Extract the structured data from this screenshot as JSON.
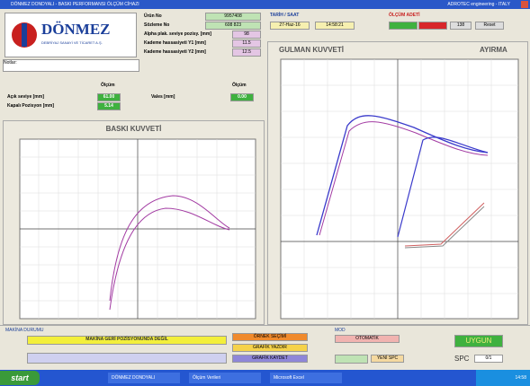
{
  "window": {
    "title": "DÖNMEZ DONDYALI - BASKI PERFORMANSI ÖLÇÜM CİHAZI",
    "vendor": "ADROTEC engineering - ITALY"
  },
  "logo": {
    "name": "DÖNMEZ",
    "subtitle": "DEBRİYAJ SANAYİ VE TİCARET A.Ş."
  },
  "fields": [
    {
      "label": "Ürün No",
      "value": "9957408"
    },
    {
      "label": "Sözleme No",
      "value": "608 823"
    },
    {
      "label": "Alpha plak. seviye pozisy. [mm]",
      "value": "98"
    },
    {
      "label": "Kademe hassasiyeti Y1 [mm]",
      "value": "11.5"
    },
    {
      "label": "Kademe hassasiyeti Y2 [mm]",
      "value": "12.5"
    }
  ],
  "notes": {
    "label": "Notlar:"
  },
  "datetime": {
    "label": "TARİH / SAAT",
    "date": "27-Haz-16",
    "time": "14:58:21"
  },
  "counter": {
    "label": "ÖLÇÜM ADETİ",
    "count": "138",
    "reset": "Reset"
  },
  "measure_left": {
    "header": "Ölçüm",
    "rows": [
      {
        "label": "Açık seviye [mm]",
        "value": "61.00"
      },
      {
        "label": "Kapalı Pozisyon [mm]",
        "value": "5.14"
      }
    ]
  },
  "measure_right": {
    "header": "Ölçüm",
    "rows": [
      {
        "label": "Vales [mm]",
        "value": "0.00"
      }
    ]
  },
  "charts": {
    "left_title": "BASKI KUVVETİ",
    "right_title": "GULMAN KUVVETİ",
    "right_title2": "AYIRMA"
  },
  "bottom": {
    "status_label": "MAKİNA DURUMU",
    "status": "MAKİNA GERİ POZİSYONUNDA DEĞİL",
    "buttons": [
      "ÖRNEK SEÇİMİ",
      "GRAFİK YAZDIR",
      "GRAFİK KAYDET"
    ],
    "mode_label": "MOD",
    "mode": "OTOMATİK",
    "new_spc": "YENİ SPC",
    "result": "UYGUN",
    "spc": "SPC",
    "spc_value": "0/1"
  },
  "taskbar": {
    "start": "start",
    "items": [
      "DÖNMEZ DONDYALI",
      "Ölçüm Verileri",
      "Microsoft Excel"
    ],
    "clock": "14:58"
  }
}
